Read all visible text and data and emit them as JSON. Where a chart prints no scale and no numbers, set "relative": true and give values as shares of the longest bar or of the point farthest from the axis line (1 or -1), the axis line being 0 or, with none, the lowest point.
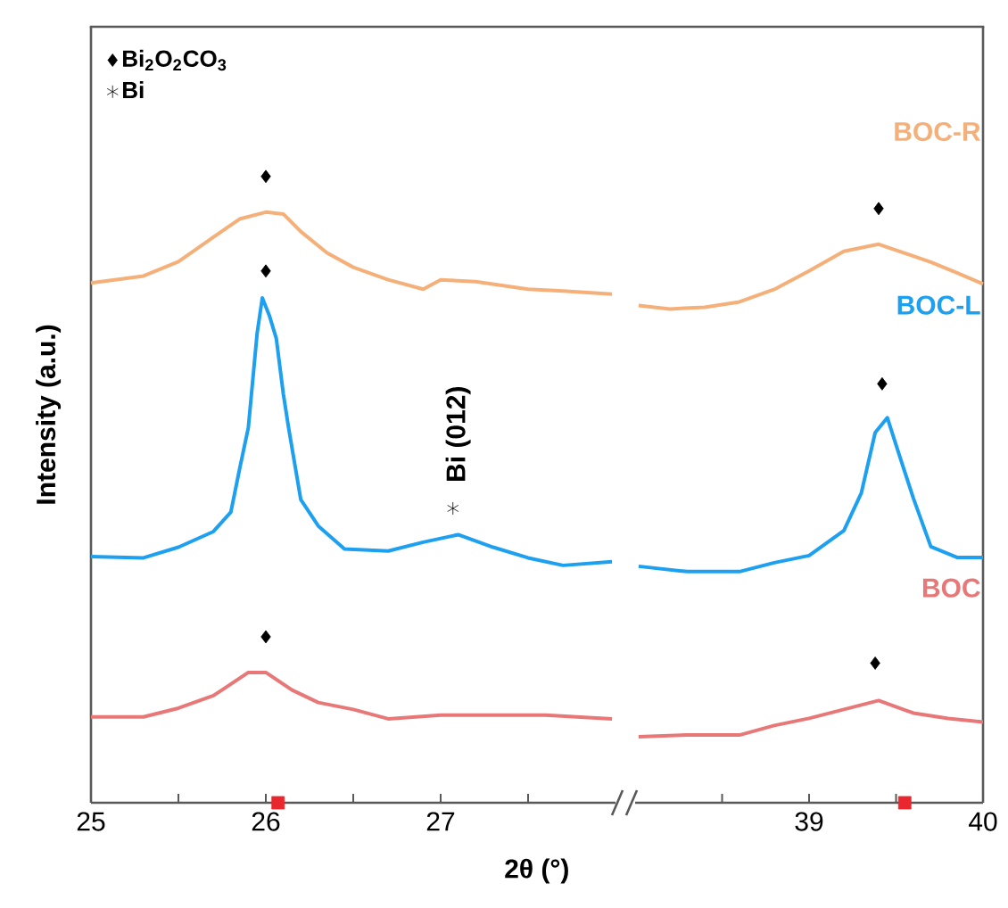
{
  "chart_data": [
    {
      "type": "line",
      "relative": true,
      "ylabel": "Intensity (a.u.)",
      "xlabel": "2θ (°)",
      "xlim": [
        25,
        28
      ],
      "xticks": [
        25,
        {
          "value": 25.5,
          "label": null
        },
        26,
        {
          "value": 26.5,
          "label": null
        },
        27,
        {
          "value": 27.5,
          "label": null
        }
      ],
      "legend": "top left",
      "annotations": [
        "Bi (012)"
      ],
      "series": [
        {
          "color": "#f5b07a",
          "x": [
            25.0,
            25.3,
            25.5,
            25.7,
            25.85,
            26.0,
            26.1,
            26.2,
            26.35,
            26.5,
            26.7,
            26.9,
            27.0,
            27.2,
            27.5,
            27.7,
            27.98
          ],
          "values": [
            0.83,
            0.841,
            0.864,
            0.903,
            0.932,
            0.943,
            0.94,
            0.912,
            0.878,
            0.855,
            0.835,
            0.82,
            0.835,
            0.832,
            0.82,
            0.817,
            0.812
          ]
        },
        {
          "color": "#1ea0f0",
          "x": [
            25.0,
            25.3,
            25.5,
            25.7,
            25.8,
            25.85,
            25.9,
            25.95,
            25.98,
            26.02,
            26.06,
            26.1,
            26.13,
            26.2,
            26.3,
            26.45,
            26.7,
            26.9,
            27.1,
            27.3,
            27.5,
            27.7,
            27.98
          ],
          "values": [
            0.393,
            0.391,
            0.408,
            0.433,
            0.464,
            0.533,
            0.599,
            0.749,
            0.806,
            0.778,
            0.741,
            0.653,
            0.599,
            0.484,
            0.442,
            0.405,
            0.402,
            0.416,
            0.428,
            0.408,
            0.391,
            0.379,
            0.385
          ]
        },
        {
          "color": "#e87878",
          "x": [
            25.0,
            25.3,
            25.5,
            25.7,
            25.9,
            26.0,
            26.15,
            26.3,
            26.5,
            26.7,
            27.0,
            27.3,
            27.6,
            27.98
          ],
          "values": [
            0.137,
            0.137,
            0.151,
            0.171,
            0.208,
            0.208,
            0.18,
            0.16,
            0.149,
            0.134,
            0.14,
            0.14,
            0.14,
            0.134
          ]
        },
        {
          "type": "scatter",
          "name": "Bi$_{2}$O$_{2}$CO$_{3}$",
          "marker": "diamond",
          "color": "#000000",
          "x": [
            26.0,
            26.0,
            26.0
          ],
          "values": [
            1.0,
            0.849,
            0.265
          ]
        },
        {
          "type": "scatter",
          "name": "Bi",
          "marker": "cross",
          "color": "#000000",
          "x": [
            27.07
          ],
          "values": [
            0.47
          ]
        },
        {
          "type": "scatter",
          "marker": "square",
          "color": "#e8282e",
          "x": [
            26.07
          ],
          "values": [
            0
          ]
        }
      ]
    },
    {
      "type": "line",
      "relative": true,
      "xlim": [
        38,
        40
      ],
      "xticks": [
        {
          "value": 38.5,
          "label": null
        },
        39,
        {
          "value": 39.5,
          "label": null
        },
        40
      ],
      "series": [
        {
          "name": "BOC-R",
          "color": "#f5b07a",
          "x": [
            38.02,
            38.2,
            38.4,
            38.6,
            38.8,
            39.0,
            39.2,
            39.4,
            39.55,
            39.7,
            39.85,
            40.0
          ],
          "values": [
            0.837,
            0.831,
            0.834,
            0.843,
            0.864,
            0.895,
            0.928,
            0.94,
            0.925,
            0.91,
            0.892,
            0.873
          ]
        },
        {
          "name": "BOC-L",
          "color": "#1ea0f0",
          "x": [
            38.02,
            38.3,
            38.6,
            38.8,
            39.0,
            39.2,
            39.3,
            39.38,
            39.45,
            39.5,
            39.6,
            39.7,
            39.85,
            40.0
          ],
          "values": [
            0.398,
            0.389,
            0.389,
            0.404,
            0.416,
            0.458,
            0.521,
            0.623,
            0.648,
            0.602,
            0.512,
            0.431,
            0.413,
            0.413
          ]
        },
        {
          "name": "BOC",
          "color": "#e87878",
          "x": [
            38.02,
            38.3,
            38.6,
            38.8,
            39.0,
            39.2,
            39.4,
            39.6,
            39.8,
            40.0
          ],
          "values": [
            0.111,
            0.114,
            0.114,
            0.13,
            0.142,
            0.157,
            0.172,
            0.151,
            0.142,
            0.136
          ]
        },
        {
          "type": "scatter",
          "marker": "diamond",
          "color": "#000000",
          "x": [
            39.4,
            39.42,
            39.38
          ],
          "values": [
            1.0,
            0.705,
            0.235
          ]
        },
        {
          "type": "scatter",
          "marker": "square",
          "color": "#e8282e",
          "x": [
            39.55
          ],
          "values": [
            0
          ]
        }
      ]
    }
  ]
}
